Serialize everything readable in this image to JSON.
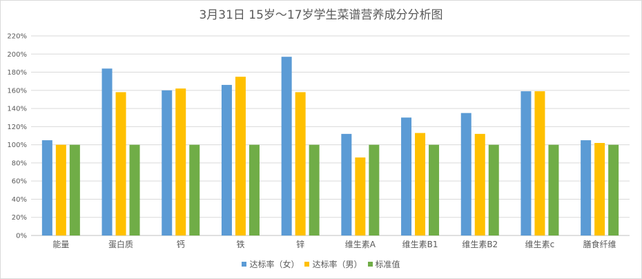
{
  "chart_data": {
    "type": "bar",
    "title": "3月31日 15岁～17岁学生菜谱营养成分分析图",
    "categories": [
      "能量",
      "蛋白质",
      "钙",
      "铁",
      "锌",
      "维生素A",
      "维生素B1",
      "维生素B2",
      "维生素c",
      "膳食纤维"
    ],
    "series": [
      {
        "name": "达标率（女）",
        "color": "#5b9bd5",
        "values": [
          105,
          184,
          160,
          166,
          197,
          112,
          130,
          135,
          159,
          105
        ]
      },
      {
        "name": "达标率（男）",
        "color": "#ffc000",
        "values": [
          100,
          158,
          162,
          175,
          158,
          86,
          113,
          112,
          159,
          102
        ]
      },
      {
        "name": "标准值",
        "color": "#70ad47",
        "values": [
          100,
          100,
          100,
          100,
          100,
          100,
          100,
          100,
          100,
          100
        ]
      }
    ],
    "yticks": [
      "0%",
      "20%",
      "40%",
      "60%",
      "80%",
      "100%",
      "120%",
      "140%",
      "160%",
      "180%",
      "200%",
      "220%"
    ],
    "ylim": [
      0,
      220
    ],
    "unit": "%",
    "grid": true,
    "legend_position": "bottom"
  }
}
